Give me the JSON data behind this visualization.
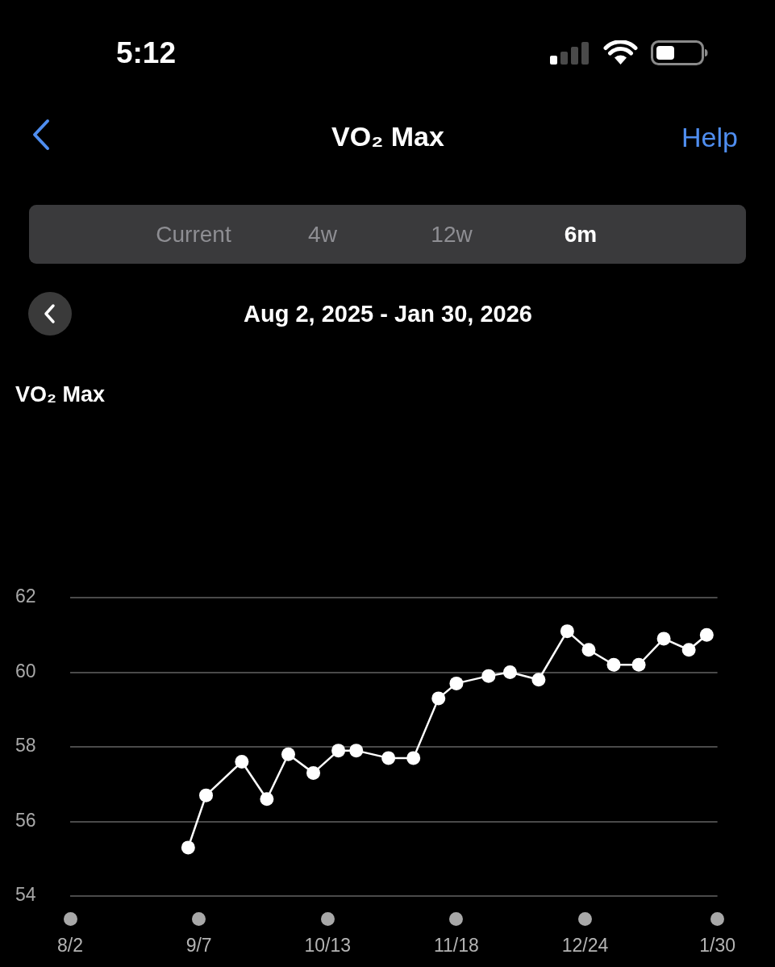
{
  "chart_data": {
    "type": "line",
    "title": "VO₂ Max",
    "subtitle": "Aug 2, 2025 - Jan 30, 2026",
    "annotations": [
      "5:12",
      "Help",
      "Current",
      "4w",
      "12w",
      "6m",
      "VO₂ Max"
    ],
    "x": [
      "2025-09-04",
      "2025-09-09",
      "2025-09-19",
      "2025-09-26",
      "2025-10-02",
      "2025-10-09",
      "2025-10-16",
      "2025-10-21",
      "2025-10-30",
      "2025-11-06",
      "2025-11-13",
      "2025-11-18",
      "2025-11-27",
      "2025-12-03",
      "2025-12-11",
      "2025-12-19",
      "2025-12-25",
      "2026-01-01",
      "2026-01-08",
      "2026-01-15",
      "2026-01-22",
      "2026-01-27"
    ],
    "values": [
      55.3,
      56.7,
      57.6,
      56.6,
      57.8,
      57.3,
      57.9,
      57.9,
      57.7,
      57.7,
      59.3,
      59.7,
      59.9,
      60.0,
      59.8,
      61.1,
      60.6,
      60.2,
      60.2,
      60.9,
      60.6,
      61.0
    ],
    "color": "#ffffff",
    "xlim": [
      "2025-08-02",
      "2026-01-30"
    ],
    "xticks": [
      {
        "value": "2025-08-02",
        "label": "8/2"
      },
      {
        "value": "2025-09-07",
        "label": "9/7"
      },
      {
        "value": "2025-10-13",
        "label": "10/13"
      },
      {
        "value": "2025-11-18",
        "label": "11/18"
      },
      {
        "value": "2025-12-24",
        "label": "12/24"
      },
      {
        "value": "2026-01-30",
        "label": "1/30"
      }
    ],
    "ylim": [
      54,
      62
    ],
    "yticks": [
      54,
      56,
      58,
      60,
      62
    ],
    "grid": "y",
    "marker": "circle",
    "line_style": "solid"
  }
}
